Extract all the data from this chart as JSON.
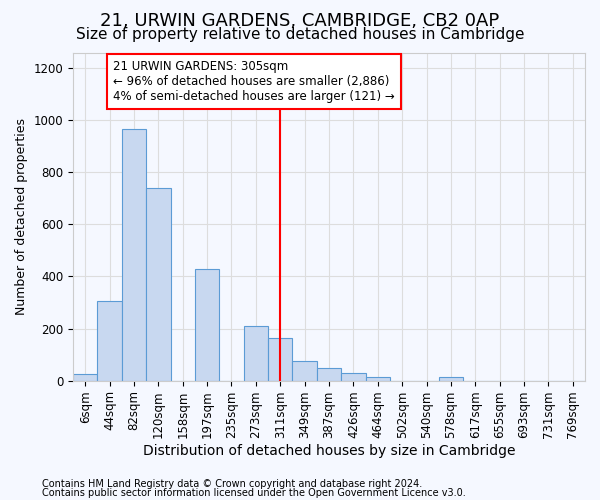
{
  "title": "21, URWIN GARDENS, CAMBRIDGE, CB2 0AP",
  "subtitle": "Size of property relative to detached houses in Cambridge",
  "xlabel": "Distribution of detached houses by size in Cambridge",
  "ylabel": "Number of detached properties",
  "footer1": "Contains HM Land Registry data © Crown copyright and database right 2024.",
  "footer2": "Contains public sector information licensed under the Open Government Licence v3.0.",
  "bar_labels": [
    "6sqm",
    "44sqm",
    "82sqm",
    "120sqm",
    "158sqm",
    "197sqm",
    "235sqm",
    "273sqm",
    "311sqm",
    "349sqm",
    "387sqm",
    "426sqm",
    "464sqm",
    "502sqm",
    "540sqm",
    "578sqm",
    "617sqm",
    "655sqm",
    "693sqm",
    "731sqm",
    "769sqm"
  ],
  "bar_values": [
    25,
    305,
    965,
    740,
    0,
    430,
    0,
    210,
    165,
    75,
    48,
    30,
    15,
    0,
    0,
    15,
    0,
    0,
    0,
    0,
    0
  ],
  "bar_color": "#c8d8f0",
  "bar_edge_color": "#5b9bd5",
  "vline_color": "red",
  "annotation_text": "21 URWIN GARDENS: 305sqm\n← 96% of detached houses are smaller (2,886)\n4% of semi-detached houses are larger (121) →",
  "annotation_box_color": "red",
  "ylim": [
    0,
    1260
  ],
  "background_color": "#f5f8ff",
  "grid_color": "#dddddd",
  "title_fontsize": 13,
  "subtitle_fontsize": 11,
  "tick_fontsize": 8.5,
  "ylabel_fontsize": 9,
  "xlabel_fontsize": 10,
  "footer_fontsize": 7
}
